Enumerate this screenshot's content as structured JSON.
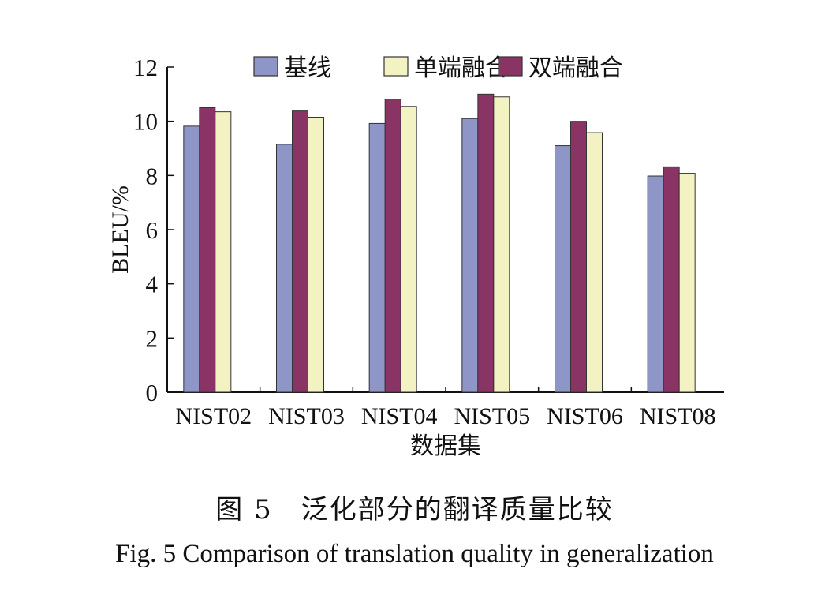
{
  "chart_data": {
    "type": "bar",
    "categories": [
      "NIST02",
      "NIST03",
      "NIST04",
      "NIST05",
      "NIST06",
      "NIST08"
    ],
    "series": [
      {
        "name": "基线",
        "values": [
          9.82,
          9.15,
          9.92,
          10.1,
          9.1,
          7.98
        ],
        "color": "#8e96c8"
      },
      {
        "name": "双端融合",
        "values": [
          10.5,
          10.38,
          10.82,
          11.0,
          10.0,
          8.32
        ],
        "color": "#8a3466"
      },
      {
        "name": "单端融合",
        "values": [
          10.35,
          10.15,
          10.55,
          10.9,
          9.58,
          8.08
        ],
        "color": "#f3f2c3"
      }
    ],
    "legend_order": [
      "基线",
      "单端融合",
      "双端融合"
    ],
    "ylabel": "BLEU/%",
    "xlabel": "数据集",
    "ylim": [
      0,
      12
    ],
    "yticks": [
      0,
      2,
      4,
      6,
      8,
      10,
      12
    ],
    "grid": false,
    "legend_position": "top"
  },
  "caption": {
    "cn": "图 5　泛化部分的翻译质量比较",
    "en": "Fig. 5   Comparison of translation quality in generalization"
  }
}
